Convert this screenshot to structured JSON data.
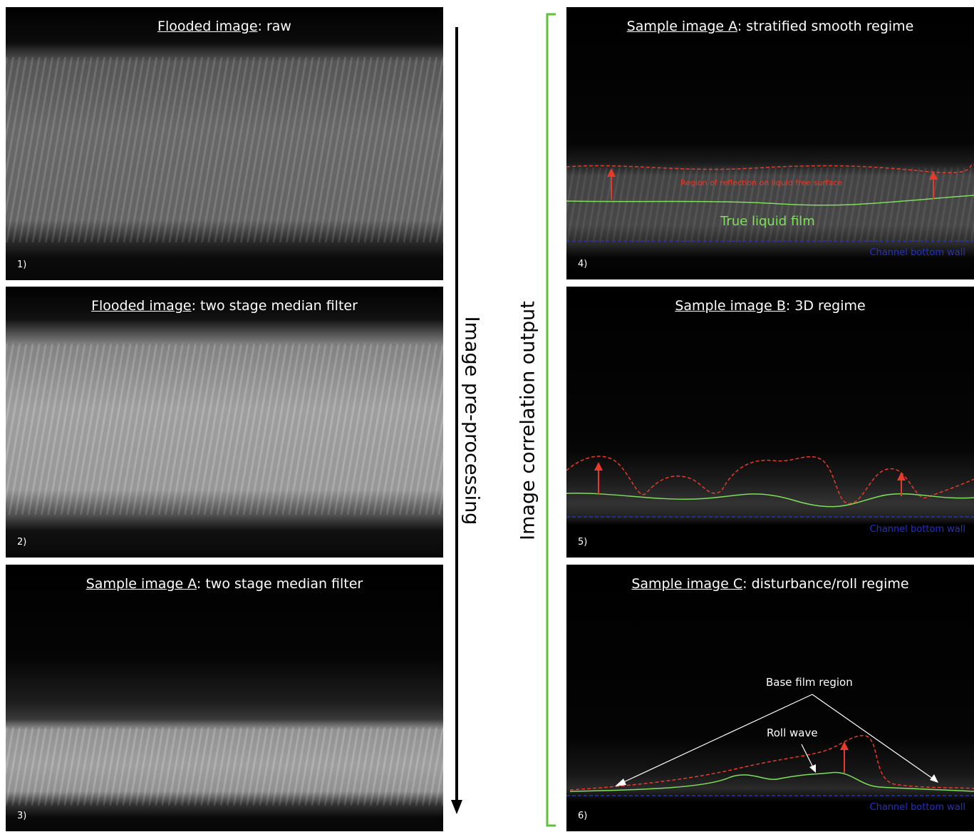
{
  "left_label": "Image pre-processing",
  "right_label": "Image correlation output",
  "panels": [
    {
      "title_underlined": "Flooded image",
      "title_rest": ": raw",
      "number": "1)"
    },
    {
      "title_underlined": "Flooded image",
      "title_rest": ": two stage median filter",
      "number": "2)"
    },
    {
      "title_underlined": "Sample image A",
      "title_rest": ": two stage median filter",
      "number": "3)"
    },
    {
      "title_underlined": "Sample image A",
      "title_rest": ": stratified smooth regime",
      "number": "4)",
      "annotations": [
        "Region of reflection on liquid free surface",
        "True liquid film",
        "Channel bottom wall"
      ]
    },
    {
      "title_underlined": "Sample image B",
      "title_rest": ": 3D regime",
      "number": "5)",
      "annotations": [
        "Channel bottom wall"
      ]
    },
    {
      "title_underlined": "Sample image C",
      "title_rest": ": disturbance/roll regime",
      "number": "6)",
      "annotations": [
        "Base film region",
        "Roll wave",
        "Channel bottom wall"
      ]
    }
  ]
}
